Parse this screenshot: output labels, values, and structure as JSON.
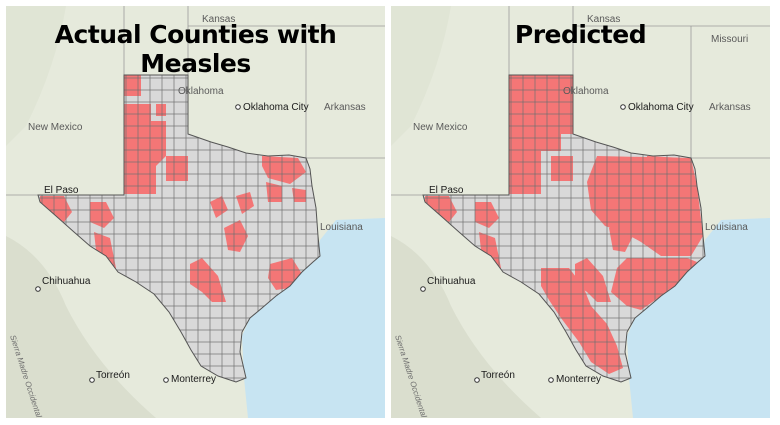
{
  "colors": {
    "affected": "#f47676",
    "unaffected": "#d9d9d9",
    "border": "#6f6f6f",
    "water": "#c7e4f2",
    "land": "#e6eadc"
  },
  "panels": [
    {
      "id": "actual",
      "title": "Actual Counties with Measles",
      "labels": {
        "kansas": "Kansas",
        "missouri": "",
        "oklahoma": "Oklahoma",
        "oklahoma_city": "Oklahoma City",
        "arkansas": "Arkansas",
        "new_mexico": "New Mexico",
        "louisiana": "Louisiana",
        "el_paso": "El Paso",
        "chihuahua": "Chihuahua",
        "torreon": "Torreón",
        "monterrey": "Monterrey",
        "sierra": "Sierra Madre Occidental"
      },
      "affected_regions": [
        "panhandle-w",
        "panhandle-nw",
        "south-plains",
        "big-bend",
        "el-paso",
        "hill-country",
        "north-east",
        "central-east",
        "houston"
      ]
    },
    {
      "id": "predicted",
      "title": "Predicted",
      "labels": {
        "kansas": "Kansas",
        "missouri": "Missouri",
        "oklahoma": "Oklahoma",
        "oklahoma_city": "Oklahoma City",
        "arkansas": "Arkansas",
        "new_mexico": "New Mexico",
        "louisiana": "Louisiana",
        "el_paso": "El Paso",
        "chihuahua": "Chihuahua",
        "torreon": "Torreón",
        "monterrey": "Monterrey",
        "sierra": "Sierra Madre Occidental"
      },
      "affected_regions": [
        "panhandle-all",
        "south-plains",
        "big-bend",
        "el-paso",
        "hill-country",
        "north-east",
        "central-east",
        "houston",
        "east-texas",
        "coast",
        "south-texas"
      ]
    }
  ]
}
